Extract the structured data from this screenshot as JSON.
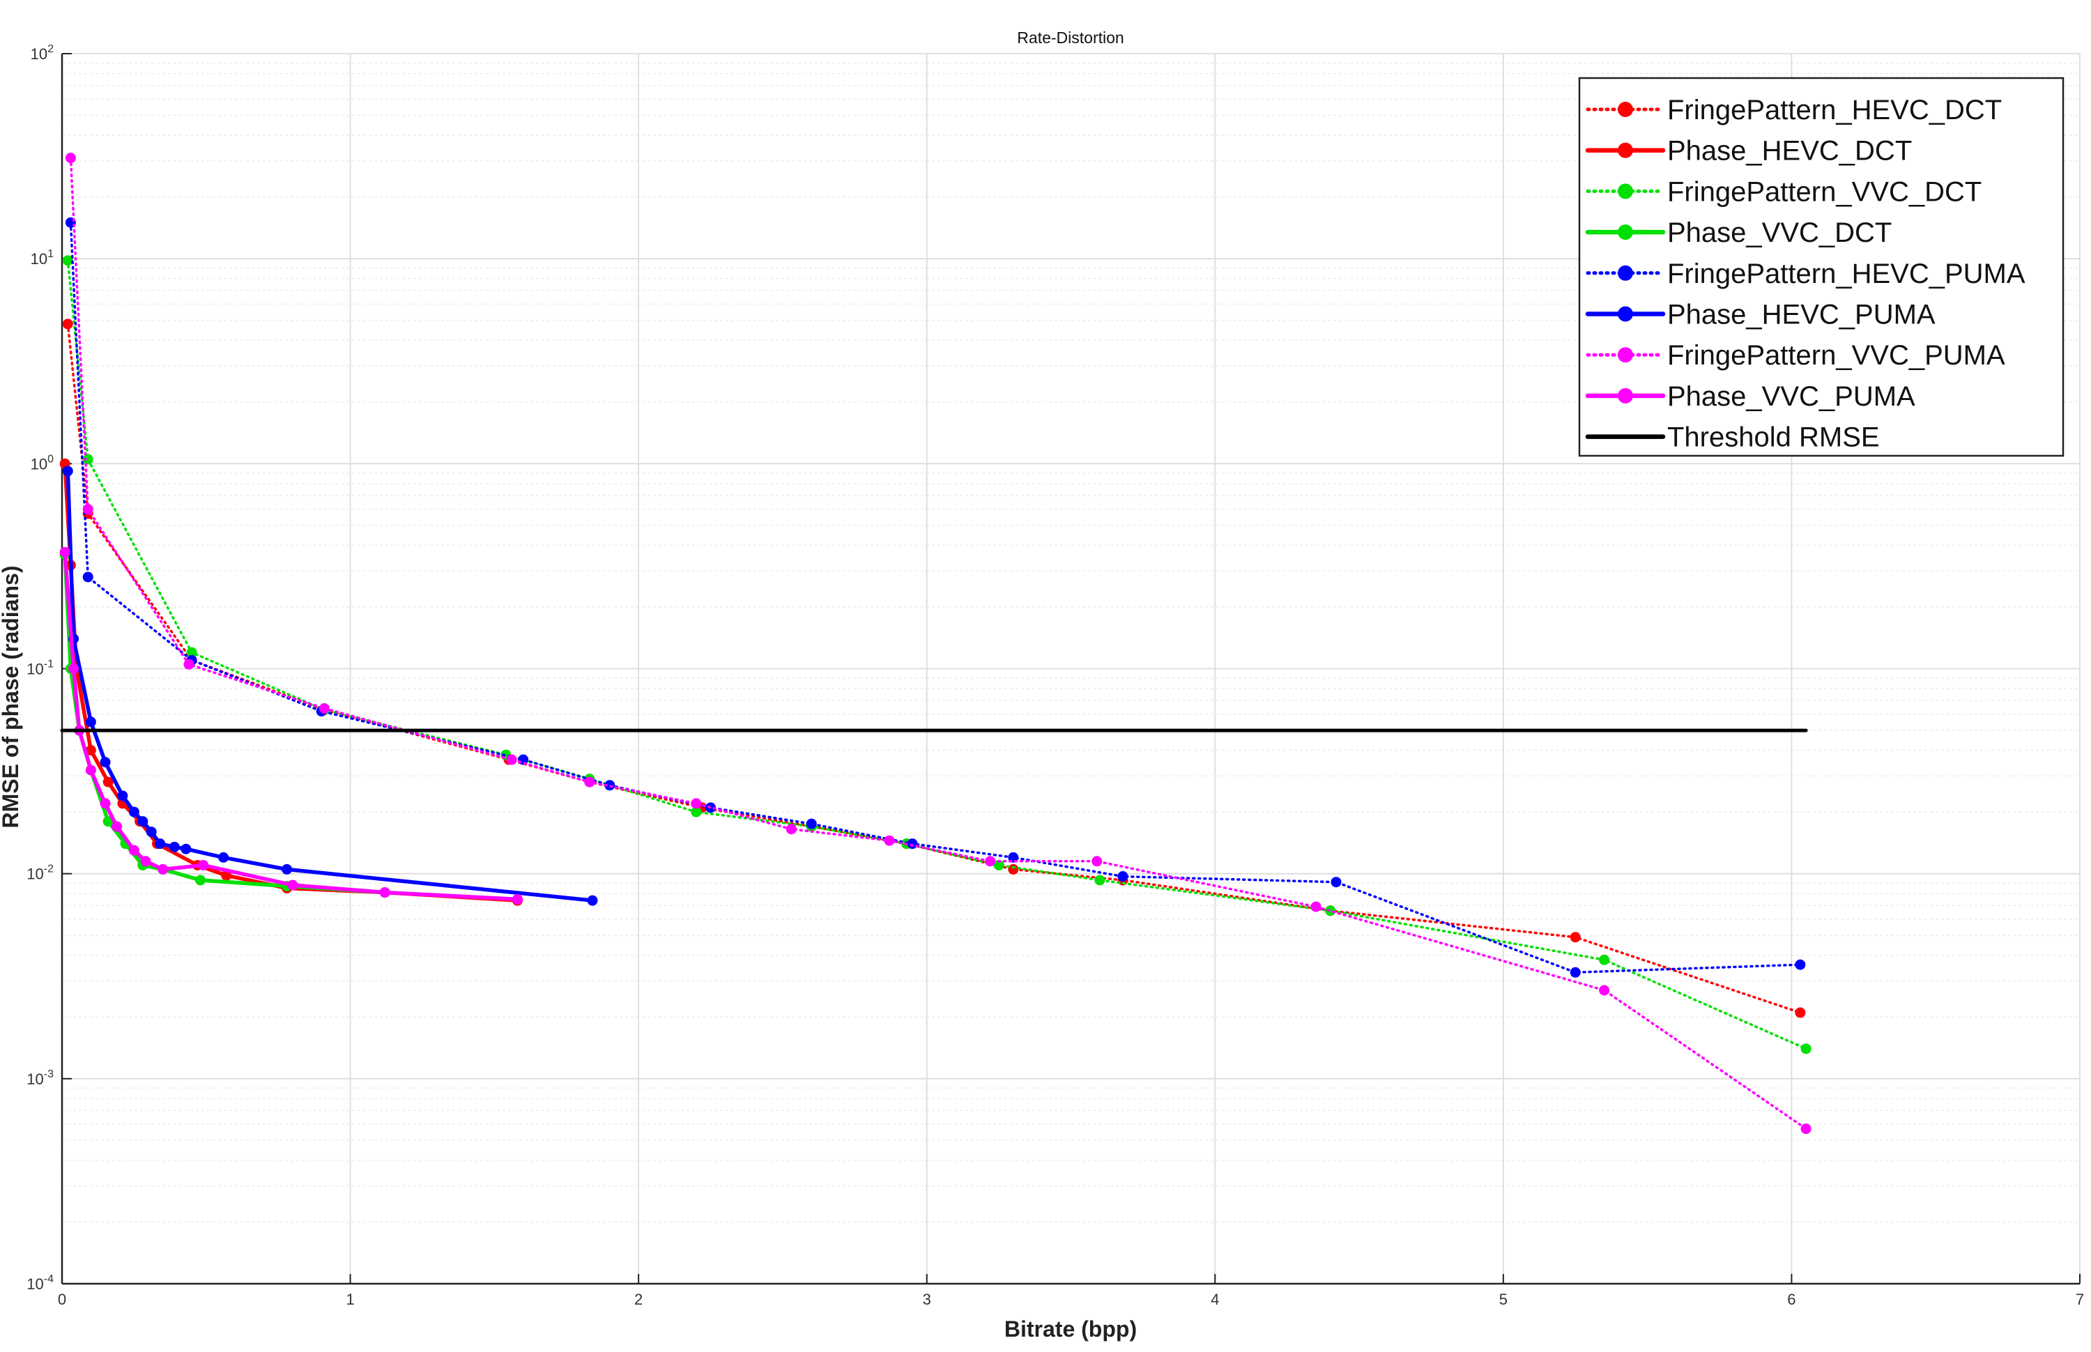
{
  "chart_data": {
    "type": "line",
    "title": "Rate-Distortion",
    "xlabel": "Bitrate (bpp)",
    "ylabel": "RMSE of phase (radians)",
    "xlim": [
      0,
      7
    ],
    "ylim": [
      0.0001,
      100
    ],
    "yscale": "log",
    "grid": true,
    "legend_position": "top-right",
    "x_ticks": [
      "0",
      "1",
      "2",
      "3",
      "4",
      "5",
      "6",
      "7"
    ],
    "y_ticks": [
      {
        "base": "10",
        "exp": "-4",
        "value": 0.0001
      },
      {
        "base": "10",
        "exp": "-3",
        "value": 0.001
      },
      {
        "base": "10",
        "exp": "-2",
        "value": 0.01
      },
      {
        "base": "10",
        "exp": "-1",
        "value": 0.1
      },
      {
        "base": "10",
        "exp": "0",
        "value": 1
      },
      {
        "base": "10",
        "exp": "1",
        "value": 10
      },
      {
        "base": "10",
        "exp": "2",
        "value": 100
      }
    ],
    "series": [
      {
        "name": "FringePattern_HEVC_DCT",
        "color": "#ff0000",
        "style": "dotted",
        "x": [
          0.02,
          0.09,
          0.45,
          0.91,
          1.55,
          1.83,
          2.22,
          2.6,
          2.93,
          3.3,
          3.68,
          4.4,
          5.25,
          6.03
        ],
        "y": [
          4.8,
          0.57,
          0.11,
          0.063,
          0.036,
          0.028,
          0.021,
          0.017,
          0.014,
          0.0105,
          0.0093,
          0.0066,
          0.0049,
          0.0021
        ]
      },
      {
        "name": "Phase_HEVC_DCT",
        "color": "#ff0000",
        "style": "solid",
        "x": [
          0.01,
          0.03,
          0.05,
          0.1,
          0.16,
          0.21,
          0.27,
          0.33,
          0.47,
          0.57,
          0.78,
          1.12,
          1.58
        ],
        "y": [
          1.0,
          0.32,
          0.1,
          0.04,
          0.028,
          0.022,
          0.018,
          0.014,
          0.011,
          0.0098,
          0.0085,
          0.0081,
          0.0074
        ]
      },
      {
        "name": "FringePattern_VVC_DCT",
        "color": "#00e000",
        "style": "dotted",
        "x": [
          0.02,
          0.09,
          0.45,
          0.91,
          1.54,
          1.83,
          2.2,
          2.6,
          2.93,
          3.25,
          3.6,
          4.4,
          5.35,
          6.05
        ],
        "y": [
          9.8,
          1.05,
          0.12,
          0.063,
          0.038,
          0.029,
          0.02,
          0.017,
          0.014,
          0.011,
          0.0093,
          0.0066,
          0.0038,
          0.0014
        ]
      },
      {
        "name": "Phase_VVC_DCT",
        "color": "#00e000",
        "style": "solid",
        "x": [
          0.01,
          0.03,
          0.06,
          0.1,
          0.16,
          0.22,
          0.28,
          0.35,
          0.48,
          0.78,
          1.12
        ],
        "y": [
          0.36,
          0.1,
          0.05,
          0.032,
          0.018,
          0.014,
          0.011,
          0.0105,
          0.0093,
          0.0087,
          0.0081
        ]
      },
      {
        "name": "FringePattern_HEVC_PUMA",
        "color": "#0000ff",
        "style": "dotted",
        "x": [
          0.03,
          0.09,
          0.45,
          0.9,
          1.6,
          1.9,
          2.25,
          2.6,
          2.95,
          3.3,
          3.68,
          4.42,
          5.25,
          6.03
        ],
        "y": [
          15,
          0.28,
          0.11,
          0.062,
          0.036,
          0.027,
          0.021,
          0.0175,
          0.014,
          0.012,
          0.0097,
          0.0091,
          0.0033,
          0.0036
        ]
      },
      {
        "name": "Phase_HEVC_PUMA",
        "color": "#0000ff",
        "style": "solid",
        "x": [
          0.02,
          0.04,
          0.1,
          0.15,
          0.21,
          0.25,
          0.28,
          0.31,
          0.34,
          0.39,
          0.43,
          0.56,
          0.78,
          1.84
        ],
        "y": [
          0.92,
          0.14,
          0.055,
          0.035,
          0.024,
          0.02,
          0.018,
          0.016,
          0.014,
          0.0135,
          0.0132,
          0.012,
          0.0105,
          0.0074
        ]
      },
      {
        "name": "FringePattern_VVC_PUMA",
        "color": "#ff00ff",
        "style": "dotted",
        "x": [
          0.03,
          0.09,
          0.44,
          0.91,
          1.56,
          1.83,
          2.2,
          2.53,
          2.87,
          3.22,
          3.59,
          4.35,
          5.35,
          6.05
        ],
        "y": [
          31,
          0.6,
          0.105,
          0.064,
          0.036,
          0.028,
          0.022,
          0.0165,
          0.0145,
          0.0115,
          0.0115,
          0.0069,
          0.0027,
          0.00057
        ]
      },
      {
        "name": "Phase_VVC_PUMA",
        "color": "#ff00ff",
        "style": "solid",
        "x": [
          0.01,
          0.04,
          0.06,
          0.1,
          0.15,
          0.19,
          0.25,
          0.29,
          0.35,
          0.49,
          0.8,
          1.12,
          1.58
        ],
        "y": [
          0.37,
          0.1,
          0.05,
          0.032,
          0.022,
          0.017,
          0.013,
          0.0115,
          0.0105,
          0.011,
          0.0088,
          0.0081,
          0.0075
        ]
      },
      {
        "name": "Threshold RMSE",
        "color": "#000000",
        "style": "threshold",
        "x": [
          0.0,
          6.05
        ],
        "y": [
          0.05,
          0.05
        ]
      }
    ]
  }
}
